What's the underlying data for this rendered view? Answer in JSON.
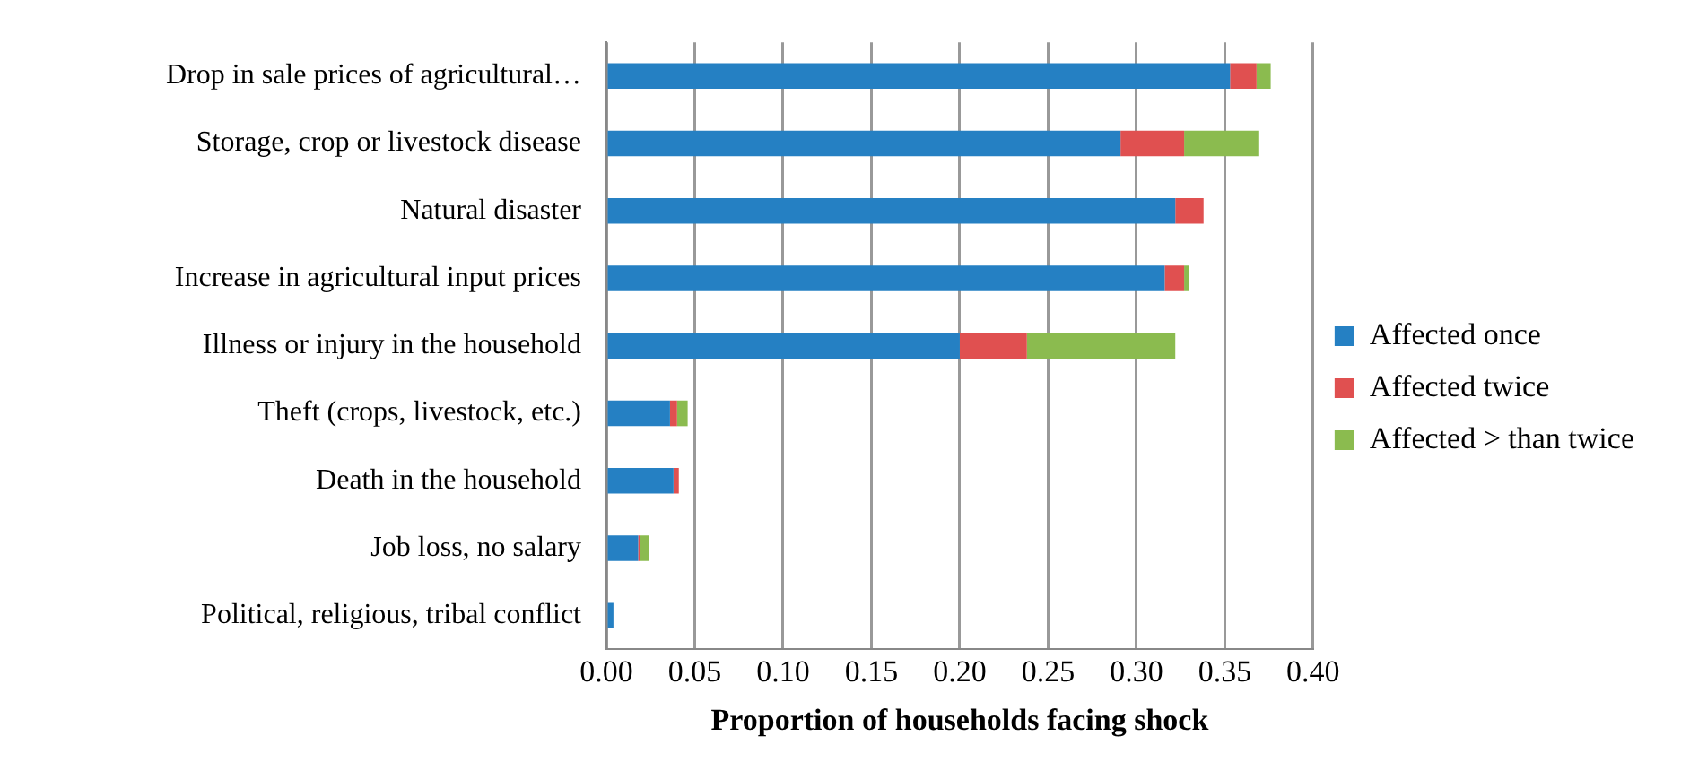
{
  "chart_data": {
    "type": "bar",
    "orientation": "horizontal",
    "stacked": true,
    "xlabel": "Proportion of households facing shock",
    "categories": [
      "Drop in sale prices of agricultural…",
      "Storage, crop or livestock disease",
      "Natural disaster",
      "Increase in agricultural input prices",
      "Illness or injury in the household",
      "Theft (crops, livestock, etc.)",
      "Death in the household",
      "Job loss, no salary",
      "Political, religious, tribal conflict"
    ],
    "series": [
      {
        "name": "Affected once",
        "color": "#2580c3",
        "values": [
          0.353,
          0.291,
          0.322,
          0.316,
          0.2,
          0.036,
          0.038,
          0.018,
          0.004
        ]
      },
      {
        "name": "Affected twice",
        "color": "#e05050",
        "values": [
          0.015,
          0.036,
          0.016,
          0.011,
          0.038,
          0.004,
          0.003,
          0.001,
          0
        ]
      },
      {
        "name": "Affected > than twice",
        "color": "#8bbb4f",
        "values": [
          0.008,
          0.042,
          0,
          0.003,
          0.084,
          0.006,
          0,
          0.005,
          0
        ]
      }
    ],
    "xlim": [
      0,
      0.4
    ],
    "xticks": [
      {
        "value": 0,
        "label": "0.00"
      },
      {
        "value": 0.05,
        "label": "0.05"
      },
      {
        "value": 0.1,
        "label": "0.10"
      },
      {
        "value": 0.15,
        "label": "0.15"
      },
      {
        "value": 0.2,
        "label": "0.20"
      },
      {
        "value": 0.25,
        "label": "0.25"
      },
      {
        "value": 0.3,
        "label": "0.30"
      },
      {
        "value": 0.35,
        "label": "0.35"
      },
      {
        "value": 0.4,
        "label": "0.40"
      }
    ],
    "grid": "x",
    "legend": "right"
  }
}
